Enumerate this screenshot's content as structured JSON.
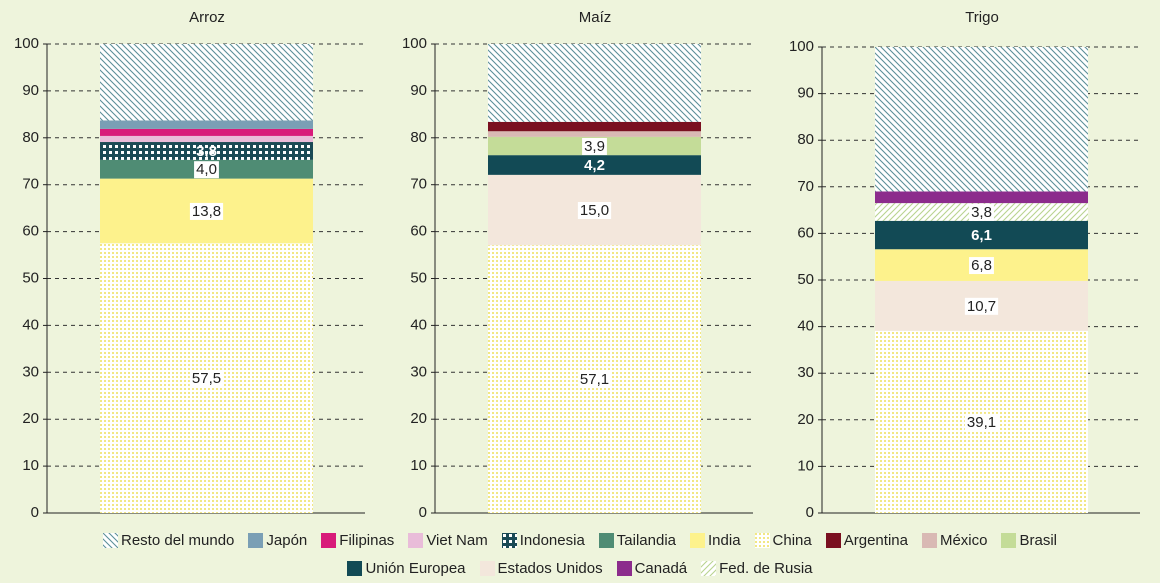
{
  "chart_data": [
    {
      "type": "bar",
      "stacked": true,
      "title": "Arroz",
      "ylim": [
        0,
        100
      ],
      "yticks": [
        0,
        10,
        20,
        30,
        40,
        50,
        60,
        70,
        80,
        90,
        100
      ],
      "grid": true,
      "series": [
        {
          "name": "China",
          "values": [
            57.5
          ],
          "value_labels": [
            "57,5"
          ]
        },
        {
          "name": "India",
          "values": [
            13.8
          ],
          "value_labels": [
            "13,8"
          ]
        },
        {
          "name": "Tailandia",
          "values": [
            4.0
          ],
          "value_labels": [
            "4,0"
          ]
        },
        {
          "name": "Indonesia",
          "values": [
            3.8
          ],
          "value_labels": [
            "3,8"
          ]
        },
        {
          "name": "Viet Nam",
          "values": [
            1.3
          ]
        },
        {
          "name": "Filipinas",
          "values": [
            1.5
          ]
        },
        {
          "name": "Japón",
          "values": [
            1.8
          ]
        },
        {
          "name": "Resto del mundo",
          "values": [
            16.3
          ]
        }
      ]
    },
    {
      "type": "bar",
      "stacked": true,
      "title": "Maíz",
      "ylim": [
        0,
        100
      ],
      "yticks": [
        0,
        10,
        20,
        30,
        40,
        50,
        60,
        70,
        80,
        90,
        100
      ],
      "grid": true,
      "series": [
        {
          "name": "China",
          "values": [
            57.1
          ],
          "value_labels": [
            "57,1"
          ]
        },
        {
          "name": "Estados Unidos",
          "values": [
            15.0
          ],
          "value_labels": [
            "15,0"
          ]
        },
        {
          "name": "Unión Europea",
          "values": [
            4.2
          ],
          "value_labels": [
            "4,2"
          ]
        },
        {
          "name": "Brasil",
          "values": [
            3.9
          ],
          "value_labels": [
            "3,9"
          ]
        },
        {
          "name": "México",
          "values": [
            1.2
          ]
        },
        {
          "name": "Argentina",
          "values": [
            2.0
          ]
        },
        {
          "name": "Resto del mundo",
          "values": [
            16.6
          ]
        }
      ]
    },
    {
      "type": "bar",
      "stacked": true,
      "title": "Trigo",
      "ylim": [
        0,
        100
      ],
      "yticks": [
        0,
        10,
        20,
        30,
        40,
        50,
        60,
        70,
        80,
        90,
        100
      ],
      "grid": true,
      "series": [
        {
          "name": "China",
          "values": [
            39.1
          ],
          "value_labels": [
            "39,1"
          ]
        },
        {
          "name": "Estados Unidos",
          "values": [
            10.7
          ],
          "value_labels": [
            "10,7"
          ]
        },
        {
          "name": "India",
          "values": [
            6.8
          ],
          "value_labels": [
            "6,8"
          ]
        },
        {
          "name": "Unión Europea",
          "values": [
            6.1
          ],
          "value_labels": [
            "6,1"
          ]
        },
        {
          "name": "Fed. de Rusia",
          "values": [
            3.8
          ],
          "value_labels": [
            "3,8"
          ]
        },
        {
          "name": "Canadá",
          "values": [
            2.5
          ]
        },
        {
          "name": "Resto del mundo",
          "values": [
            31.0
          ]
        }
      ]
    }
  ],
  "legend": [
    [
      {
        "name": "Resto del mundo",
        "color": "#5b8f99",
        "pattern": "hatch-back"
      },
      {
        "name": "Japón",
        "color": "#7a9fb5"
      },
      {
        "name": "Filipinas",
        "color": "#d81b7a"
      },
      {
        "name": "Viet Nam",
        "color": "#e9bcd9"
      },
      {
        "name": "Indonesia",
        "color": "#1a4a55",
        "pattern": "checks"
      },
      {
        "name": "Tailandia",
        "color": "#4f8c74"
      },
      {
        "name": "India",
        "color": "#fdf28c"
      },
      {
        "name": "China",
        "color": "#f2e784",
        "pattern": "dots"
      },
      {
        "name": "Argentina",
        "color": "#7a1020"
      },
      {
        "name": "México",
        "color": "#d9b9b4"
      },
      {
        "name": "Brasil",
        "color": "#c4dc98"
      }
    ],
    [
      {
        "name": "Unión Europea",
        "color": "#124a55"
      },
      {
        "name": "Estados Unidos",
        "color": "#f3e7dc"
      },
      {
        "name": "Canadá",
        "color": "#8c2c8c"
      },
      {
        "name": "Fed. de Rusia",
        "color": "#b8d490",
        "pattern": "hatch-fwd"
      }
    ]
  ]
}
